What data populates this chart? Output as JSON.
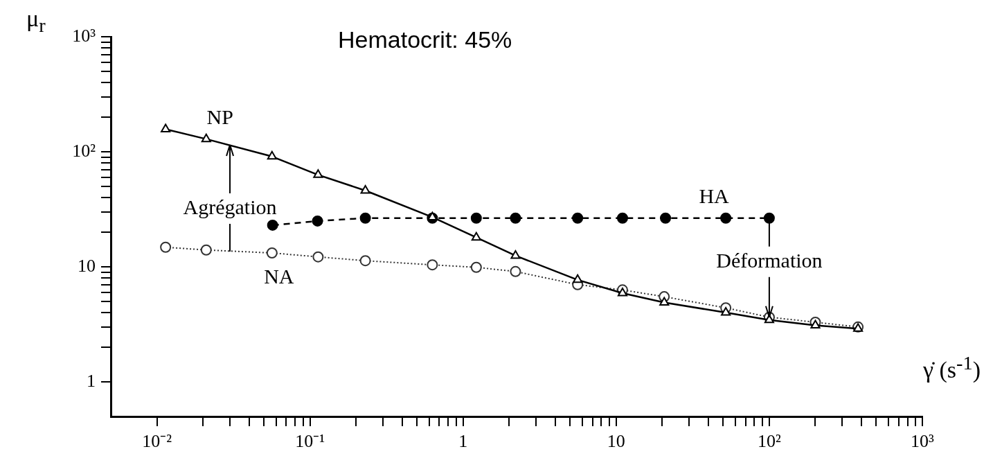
{
  "chart_data": {
    "type": "line",
    "title": "Hematocrit: 45%",
    "xlabel": "γ̇ (s$^{-1}$)",
    "ylabel": "μ$_{r}$",
    "log": "xy",
    "grid": false,
    "legend": false,
    "xlim": [
      0.005,
      1000
    ],
    "ylim": [
      0.5,
      1000
    ],
    "xticks": [
      {
        "value": 0.01,
        "label": "10⁻²"
      },
      {
        "value": 0.02,
        "label": null
      },
      {
        "value": 0.03,
        "label": null
      },
      {
        "value": 0.04,
        "label": null
      },
      {
        "value": 0.05,
        "label": null
      },
      {
        "value": 0.06,
        "label": null
      },
      {
        "value": 0.07,
        "label": null
      },
      {
        "value": 0.08,
        "label": null
      },
      {
        "value": 0.09,
        "label": null
      },
      {
        "value": 0.1,
        "label": "10⁻¹"
      },
      {
        "value": 0.2,
        "label": null
      },
      {
        "value": 0.3,
        "label": null
      },
      {
        "value": 0.4,
        "label": null
      },
      {
        "value": 0.5,
        "label": null
      },
      {
        "value": 0.6,
        "label": null
      },
      {
        "value": 0.7,
        "label": null
      },
      {
        "value": 0.8,
        "label": null
      },
      {
        "value": 0.9,
        "label": null
      },
      1,
      {
        "value": 2,
        "label": null
      },
      {
        "value": 3,
        "label": null
      },
      {
        "value": 4,
        "label": null
      },
      {
        "value": 5,
        "label": null
      },
      {
        "value": 6,
        "label": null
      },
      {
        "value": 7,
        "label": null
      },
      {
        "value": 8,
        "label": null
      },
      {
        "value": 9,
        "label": null
      },
      10,
      {
        "value": 20,
        "label": null
      },
      {
        "value": 30,
        "label": null
      },
      {
        "value": 40,
        "label": null
      },
      {
        "value": 50,
        "label": null
      },
      {
        "value": 60,
        "label": null
      },
      {
        "value": 70,
        "label": null
      },
      {
        "value": 80,
        "label": null
      },
      {
        "value": 90,
        "label": null
      },
      {
        "value": 100,
        "label": "10²"
      },
      {
        "value": 200,
        "label": null
      },
      {
        "value": 300,
        "label": null
      },
      {
        "value": 400,
        "label": null
      },
      {
        "value": 500,
        "label": null
      },
      {
        "value": 600,
        "label": null
      },
      {
        "value": 700,
        "label": null
      },
      {
        "value": 800,
        "label": null
      },
      {
        "value": 900,
        "label": null
      },
      {
        "value": 1000,
        "label": "10³"
      }
    ],
    "yticks": [
      1,
      {
        "value": 2,
        "label": null
      },
      {
        "value": 3,
        "label": null
      },
      {
        "value": 4,
        "label": null
      },
      {
        "value": 5,
        "label": null
      },
      {
        "value": 6,
        "label": null
      },
      {
        "value": 7,
        "label": null
      },
      {
        "value": 8,
        "label": null
      },
      {
        "value": 9,
        "label": null
      },
      10,
      {
        "value": 20,
        "label": null
      },
      {
        "value": 30,
        "label": null
      },
      {
        "value": 40,
        "label": null
      },
      {
        "value": 50,
        "label": null
      },
      {
        "value": 60,
        "label": null
      },
      {
        "value": 70,
        "label": null
      },
      {
        "value": 80,
        "label": null
      },
      {
        "value": 90,
        "label": null
      },
      {
        "value": 100,
        "label": "10²"
      },
      {
        "value": 200,
        "label": null
      },
      {
        "value": 300,
        "label": null
      },
      {
        "value": 400,
        "label": null
      },
      {
        "value": 500,
        "label": null
      },
      {
        "value": 600,
        "label": null
      },
      {
        "value": 700,
        "label": null
      },
      {
        "value": 800,
        "label": null
      },
      {
        "value": 900,
        "label": null
      },
      {
        "value": 1000,
        "label": "10³"
      }
    ],
    "series": [
      {
        "name": "NP",
        "color": "#000000",
        "marker": "triangle",
        "line_style": "solid",
        "x": [
          0.0114,
          0.021,
          0.0565,
          0.113,
          0.23,
          0.63,
          1.22,
          2.2,
          5.6,
          11,
          20.6,
          52,
          100,
          200,
          380
        ],
        "values": [
          157,
          129,
          91,
          63,
          46,
          27,
          18,
          12.5,
          7.7,
          5.9,
          4.9,
          4.0,
          3.45,
          3.1,
          2.9
        ]
      },
      {
        "name": "NA",
        "color": "#333333",
        "marker": "circle",
        "line_style": "dotted",
        "x": [
          0.0114,
          0.021,
          0.0565,
          0.113,
          0.23,
          0.63,
          1.22,
          2.2,
          5.6,
          11,
          20.6,
          52,
          100,
          200,
          380
        ],
        "values": [
          14.8,
          14.0,
          13.2,
          12.2,
          11.3,
          10.4,
          9.9,
          9.1,
          7.0,
          6.3,
          5.5,
          4.4,
          3.65,
          3.3,
          3.0
        ]
      },
      {
        "name": "HA",
        "color": "#000000",
        "marker": "circle",
        "line_style": "dashed",
        "x": [
          0.057,
          0.112,
          0.23,
          0.63,
          1.22,
          2.2,
          5.6,
          11,
          21,
          52,
          100
        ],
        "values": [
          23,
          25,
          26.5,
          26.5,
          26.5,
          26.5,
          26.5,
          26.5,
          26.5,
          26.5,
          26.5
        ]
      }
    ],
    "annotations": [
      {
        "text": "Agrégation",
        "x": 0.03,
        "y": 115
      },
      {
        "text": "Déformation",
        "x": 100,
        "y": 3.65
      }
    ]
  }
}
